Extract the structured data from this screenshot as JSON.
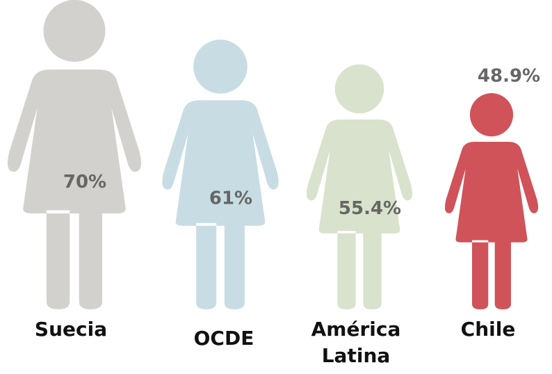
{
  "chart_data": {
    "type": "pictograph",
    "categories": [
      "Suecia",
      "OCDE",
      "América Latina",
      "Chile"
    ],
    "values": [
      70,
      61,
      55.4,
      48.9
    ],
    "value_labels": [
      "70%",
      "61%",
      "55.4%",
      "48.9%"
    ],
    "colors": [
      "#d3d1cd",
      "#c7dde3",
      "#d9e2cc",
      "#d05359"
    ]
  }
}
